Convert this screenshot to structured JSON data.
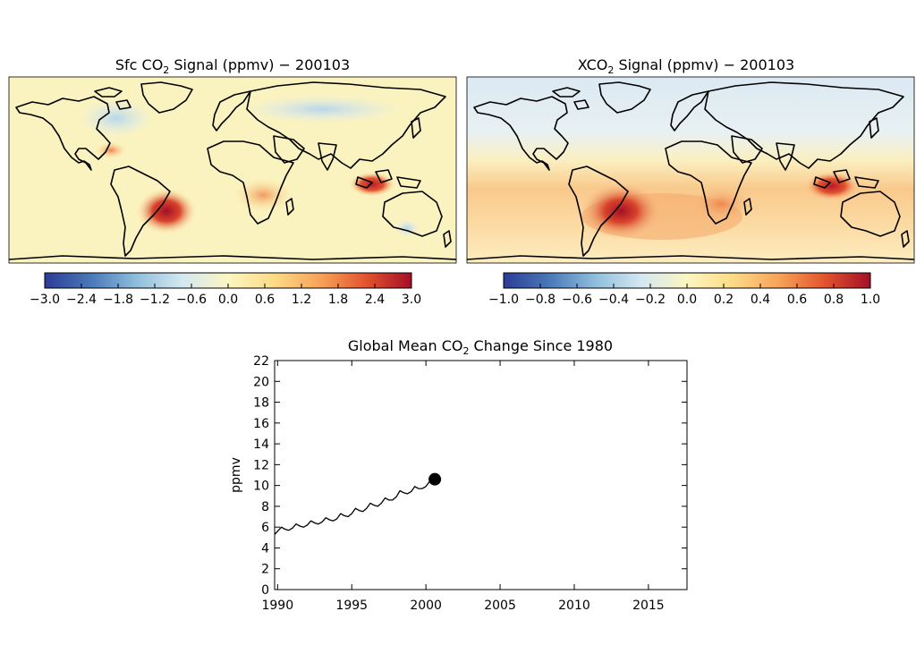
{
  "figure": {
    "colors": {
      "ocean_tint_left": "#fbf3bf",
      "ocean_tint_right": "#e3eef5",
      "coast": "#000000",
      "marker": "#000000"
    }
  },
  "maps": [
    {
      "title_pre": "Sfc CO",
      "title_sub": "2",
      "title_post": " Signal (ppmv) − 200103",
      "colorbar": {
        "ticks": [
          "−3.0",
          "−2.4",
          "−1.8",
          "−1.2",
          "−0.6",
          "0.0",
          "0.6",
          "1.2",
          "1.8",
          "2.4",
          "3.0"
        ],
        "min": -3.0,
        "max": 3.0,
        "colors": [
          "#2c3c95",
          "#4a78b8",
          "#8fbedc",
          "#d4e8f1",
          "#fbf6c2",
          "#fddb86",
          "#f7a35a",
          "#e2542f",
          "#a40f26"
        ]
      },
      "hotspots": [
        {
          "region": "South America (Brazil)",
          "value": 2.8
        },
        {
          "region": "Indonesia",
          "value": 2.2
        },
        {
          "region": "Central Africa",
          "value": 1.2
        },
        {
          "region": "Mexico / Central America",
          "value": 0.9
        },
        {
          "region": "Eastern United States",
          "value": -0.8
        },
        {
          "region": "Northern Eurasia",
          "value": -0.5
        },
        {
          "region": "Eastern Australia",
          "value": -0.6
        }
      ]
    },
    {
      "title_pre": "XCO",
      "title_sub": "2",
      "title_post": " Signal (ppmv) − 200103",
      "colorbar": {
        "ticks": [
          "−1.0",
          "−0.8",
          "−0.6",
          "−0.4",
          "−0.2",
          "0.0",
          "0.2",
          "0.4",
          "0.6",
          "0.8",
          "1.0"
        ],
        "min": -1.0,
        "max": 1.0,
        "colors": [
          "#2c3c95",
          "#4a78b8",
          "#8fbedc",
          "#d4e8f1",
          "#fbf6c2",
          "#fddb86",
          "#f7a35a",
          "#e2542f",
          "#a40f26"
        ]
      },
      "hotspots": [
        {
          "region": "South America (Brazil)",
          "value": 0.9
        },
        {
          "region": "Indonesia",
          "value": 0.7
        },
        {
          "region": "Southern Africa",
          "value": 0.5
        },
        {
          "region": "Tropical belt",
          "value": 0.25
        },
        {
          "region": "Northern Hemisphere high latitudes",
          "value": -0.15
        }
      ]
    }
  ],
  "chart_data": {
    "type": "line",
    "title_pre": "Global Mean CO",
    "title_sub": "2",
    "title_post": " Change Since 1980",
    "xlabel": "",
    "ylabel": "ppmv",
    "xlim": [
      1989.8,
      2017.6
    ],
    "ylim": [
      0,
      22
    ],
    "xticks": [
      1990,
      1995,
      2000,
      2005,
      2010,
      2015
    ],
    "yticks": [
      0,
      2,
      4,
      6,
      8,
      10,
      12,
      14,
      16,
      18,
      20,
      22
    ],
    "series": [
      {
        "name": "Global Mean CO2 change",
        "x": [
          1989.8,
          1990.0,
          1990.25,
          1990.5,
          1990.75,
          1991.0,
          1991.25,
          1991.5,
          1991.75,
          1992.0,
          1992.25,
          1992.5,
          1992.75,
          1993.0,
          1993.25,
          1993.5,
          1993.75,
          1994.0,
          1994.25,
          1994.5,
          1994.75,
          1995.0,
          1995.25,
          1995.5,
          1995.75,
          1996.0,
          1996.25,
          1996.5,
          1996.75,
          1997.0,
          1997.25,
          1997.5,
          1997.75,
          1998.0,
          1998.25,
          1998.5,
          1998.75,
          1999.0,
          1999.25,
          1999.5,
          1999.75,
          2000.0,
          2000.25,
          2000.5
        ],
        "values": [
          5.3,
          5.6,
          6.0,
          5.8,
          5.7,
          5.9,
          6.3,
          6.1,
          6.0,
          6.2,
          6.6,
          6.4,
          6.3,
          6.5,
          6.9,
          6.7,
          6.6,
          6.8,
          7.3,
          7.1,
          7.0,
          7.3,
          7.8,
          7.6,
          7.5,
          7.8,
          8.3,
          8.1,
          8.0,
          8.3,
          8.8,
          8.6,
          8.6,
          8.9,
          9.5,
          9.3,
          9.2,
          9.4,
          9.9,
          9.7,
          9.7,
          9.9,
          10.4,
          10.3
        ]
      }
    ],
    "marker": {
      "x": 2000.6,
      "y": 10.6
    }
  }
}
